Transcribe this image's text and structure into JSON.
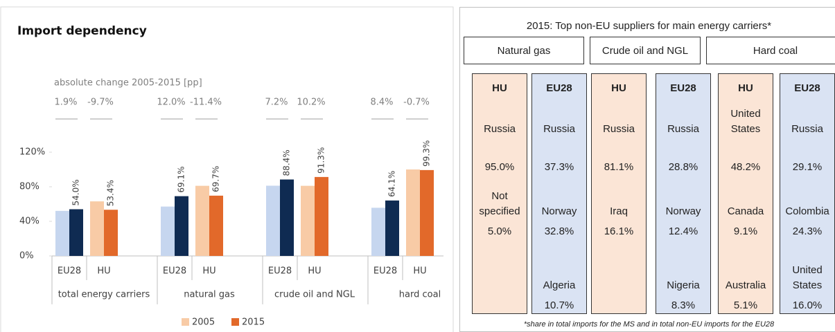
{
  "chart_data": {
    "type": "bar",
    "title": "Import dependency",
    "subtitle": "absolute change 2005-2015 [pp]",
    "categories": [
      "EU28",
      "HU",
      "EU28",
      "HU",
      "EU28",
      "HU",
      "EU28",
      "HU"
    ],
    "groups": [
      "total energy carriers",
      "natural gas",
      "crude oil and NGL",
      "hard coal"
    ],
    "series": [
      {
        "name": "2005",
        "color": "#f8cba6",
        "colors": [
          "#c6d6ef",
          "#f8cba6",
          "#c6d6ef",
          "#f8cba6",
          "#c6d6ef",
          "#f8cba6",
          "#c6d6ef",
          "#f8cba6"
        ],
        "values": [
          52.1,
          63.1,
          57.1,
          81.1,
          81.2,
          81.1,
          55.7,
          100.0
        ]
      },
      {
        "name": "2015",
        "color": "#e2692a",
        "colors": [
          "#0f2b52",
          "#e2692a",
          "#0f2b52",
          "#e2692a",
          "#0f2b52",
          "#e2692a",
          "#0f2b52",
          "#e2692a"
        ],
        "values": [
          54.0,
          53.4,
          69.1,
          69.7,
          88.4,
          91.3,
          64.1,
          99.3
        ],
        "value_labels": [
          "54.0%",
          "53.4%",
          "69.1%",
          "69.7%",
          "88.4%",
          "91.3%",
          "64.1%",
          "99.3%"
        ]
      }
    ],
    "changes": {
      "values": [
        1.9,
        -9.7,
        12.0,
        -11.4,
        7.2,
        10.2,
        8.4,
        -0.7
      ],
      "value_labels": [
        "1.9%",
        "-9.7%",
        "12.0%",
        "-11.4%",
        "7.2%",
        "10.2%",
        "8.4%",
        "-0.7%"
      ]
    },
    "ylim": [
      0,
      120
    ],
    "yticks": [
      {
        "value": 0,
        "label": "0%"
      },
      {
        "value": 40,
        "label": "40%"
      },
      {
        "value": 80,
        "label": "80%"
      },
      {
        "value": 120,
        "label": "120%"
      }
    ],
    "legend": "bottom"
  },
  "table": {
    "title": "2015: Top non-EU suppliers for main energy carriers*",
    "footnote": "*share in total imports for the MS and in total non-EU imports for the EU28",
    "groups": [
      "Natural gas",
      "Crude oil and NGL",
      "Hard coal"
    ],
    "columns": [
      {
        "header": "HU",
        "entries": [
          {
            "country": "Russia",
            "share": "95.0%"
          },
          {
            "country": "Not specified",
            "share": "5.0%"
          }
        ]
      },
      {
        "header": "EU28",
        "entries": [
          {
            "country": "Russia",
            "share": "37.3%"
          },
          {
            "country": "Norway",
            "share": "32.8%"
          },
          {
            "country": "Algeria",
            "share": "10.7%"
          }
        ]
      },
      {
        "header": "HU",
        "entries": [
          {
            "country": "Russia",
            "share": "81.1%"
          },
          {
            "country": "Iraq",
            "share": "16.1%"
          }
        ]
      },
      {
        "header": "EU28",
        "entries": [
          {
            "country": "Russia",
            "share": "28.8%"
          },
          {
            "country": "Norway",
            "share": "12.4%"
          },
          {
            "country": "Nigeria",
            "share": "8.3%"
          }
        ]
      },
      {
        "header": "HU",
        "entries": [
          {
            "country": "United States",
            "share": "48.2%"
          },
          {
            "country": "Canada",
            "share": "9.1%"
          },
          {
            "country": "Australia",
            "share": "5.1%"
          }
        ]
      },
      {
        "header": "EU28",
        "entries": [
          {
            "country": "Russia",
            "share": "29.1%"
          },
          {
            "country": "Colombia",
            "share": "24.3%"
          },
          {
            "country": "United States",
            "share": "16.0%"
          }
        ]
      }
    ]
  }
}
